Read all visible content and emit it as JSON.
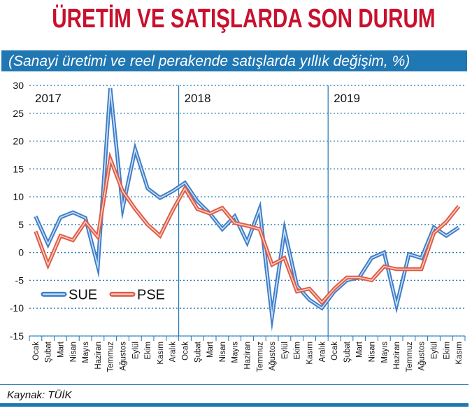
{
  "title": "ÜRETİM VE SATIŞLARDA SON DURUM",
  "subtitle": "(Sanayi üretimi ve reel perakende satışlarda yıllık değişim, %)",
  "source": "Kaynak: TÜİK",
  "colors": {
    "title": "#c8102e",
    "accent": "#1f77b4",
    "SUE": "#3d7ec9",
    "PSE": "#e05a44"
  },
  "chart_data": {
    "type": "line",
    "ylim": [
      -15,
      30
    ],
    "yticks": [
      30,
      25,
      20,
      15,
      10,
      5,
      0,
      -5,
      -10,
      -15
    ],
    "grid": true,
    "legend_position": "bottom-left",
    "years": [
      {
        "label": "2017",
        "start_index": 0
      },
      {
        "label": "2018",
        "start_index": 12
      },
      {
        "label": "2019",
        "start_index": 24
      }
    ],
    "categories": [
      "Ocak",
      "Şubat",
      "Mart",
      "Nisan",
      "Mayıs",
      "Haziran",
      "Temmuz",
      "Ağustos",
      "Eylül",
      "Ekim",
      "Kasım",
      "Aralık",
      "Ocak",
      "Şubat",
      "Mart",
      "Nisan",
      "Mayıs",
      "Haziran",
      "Temmuz",
      "Ağustos",
      "Eylül",
      "Ekim",
      "Kasım",
      "Aralık",
      "Ocak",
      "Şubat",
      "Mart",
      "Nisan",
      "Mayıs",
      "Haziran",
      "Temmuz",
      "Ağustos",
      "Eylül",
      "Ekim",
      "Kasım"
    ],
    "series": [
      {
        "name": "SUE",
        "values": [
          6.5,
          1.5,
          6.3,
          7.2,
          6.2,
          -2.5,
          29.5,
          8.0,
          18.5,
          11.5,
          9.8,
          11.0,
          12.5,
          9.2,
          7.0,
          4.2,
          6.5,
          1.8,
          7.8,
          -11.5,
          4.0,
          -6.0,
          -8.5,
          -10.0,
          -7.0,
          -5.0,
          -4.5,
          -1.0,
          0.0,
          -9.5,
          -0.3,
          -1.0,
          4.5,
          3.0,
          4.5
        ]
      },
      {
        "name": "PSE",
        "values": [
          3.8,
          -2.2,
          3.0,
          2.2,
          5.5,
          2.8,
          16.8,
          11.0,
          7.8,
          5.0,
          3.0,
          7.5,
          11.5,
          7.8,
          7.0,
          8.0,
          5.3,
          4.8,
          4.2,
          -2.2,
          -1.0,
          -7.0,
          -6.5,
          -9.0,
          -6.5,
          -4.5,
          -4.5,
          -5.0,
          -2.5,
          -3.0,
          -3.0,
          -3.0,
          3.5,
          5.5,
          8.3
        ]
      }
    ]
  }
}
